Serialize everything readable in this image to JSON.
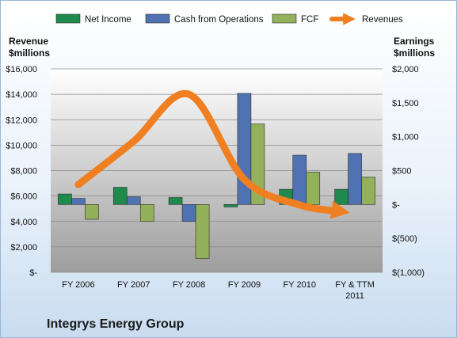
{
  "chart_data": {
    "type": "bar",
    "title": "Integrys Energy Group",
    "categories": [
      [
        "FY 2006"
      ],
      [
        "FY 2007"
      ],
      [
        "FY 2008"
      ],
      [
        "FY 2009"
      ],
      [
        "FY 2010"
      ],
      [
        "FY & TTM",
        "2011"
      ]
    ],
    "series": [
      {
        "name": "Net Income",
        "axis": "right",
        "color": "#1e8a4e",
        "values": [
          155,
          254,
          103,
          -36,
          224,
          224
        ]
      },
      {
        "name": "Cash from Operations",
        "axis": "right",
        "color": "#4f72b2",
        "values": [
          90,
          113,
          -250,
          1638,
          727,
          752
        ]
      },
      {
        "name": "FCF",
        "axis": "right",
        "color": "#93b05a",
        "values": [
          -218,
          -250,
          -798,
          1188,
          477,
          402
        ]
      },
      {
        "name": "Revenues",
        "axis": "left",
        "color": "#f07f21",
        "type": "line",
        "values": [
          6900,
          10300,
          14000,
          7300,
          5300,
          4800
        ]
      }
    ],
    "ylabel_left": "Revenue $millions",
    "ylabel_left_lines": [
      "Revenue",
      "$millions"
    ],
    "ylabel_right": "Earnings $millions",
    "ylabel_right_lines": [
      "Earnings",
      "$millions"
    ],
    "ylim_left": [
      0,
      16000
    ],
    "ylim_right": [
      -1000,
      2000
    ],
    "yticks_left": [
      "$-",
      "$2,000",
      "$4,000",
      "$6,000",
      "$8,000",
      "$10,000",
      "$12,000",
      "$14,000",
      "$16,000"
    ],
    "yticks_right": [
      "$(1,000)",
      "$(500)",
      "$-",
      "$500",
      "$1,000",
      "$1,500",
      "$2,000"
    ],
    "legend_position": "top",
    "grid": true
  }
}
